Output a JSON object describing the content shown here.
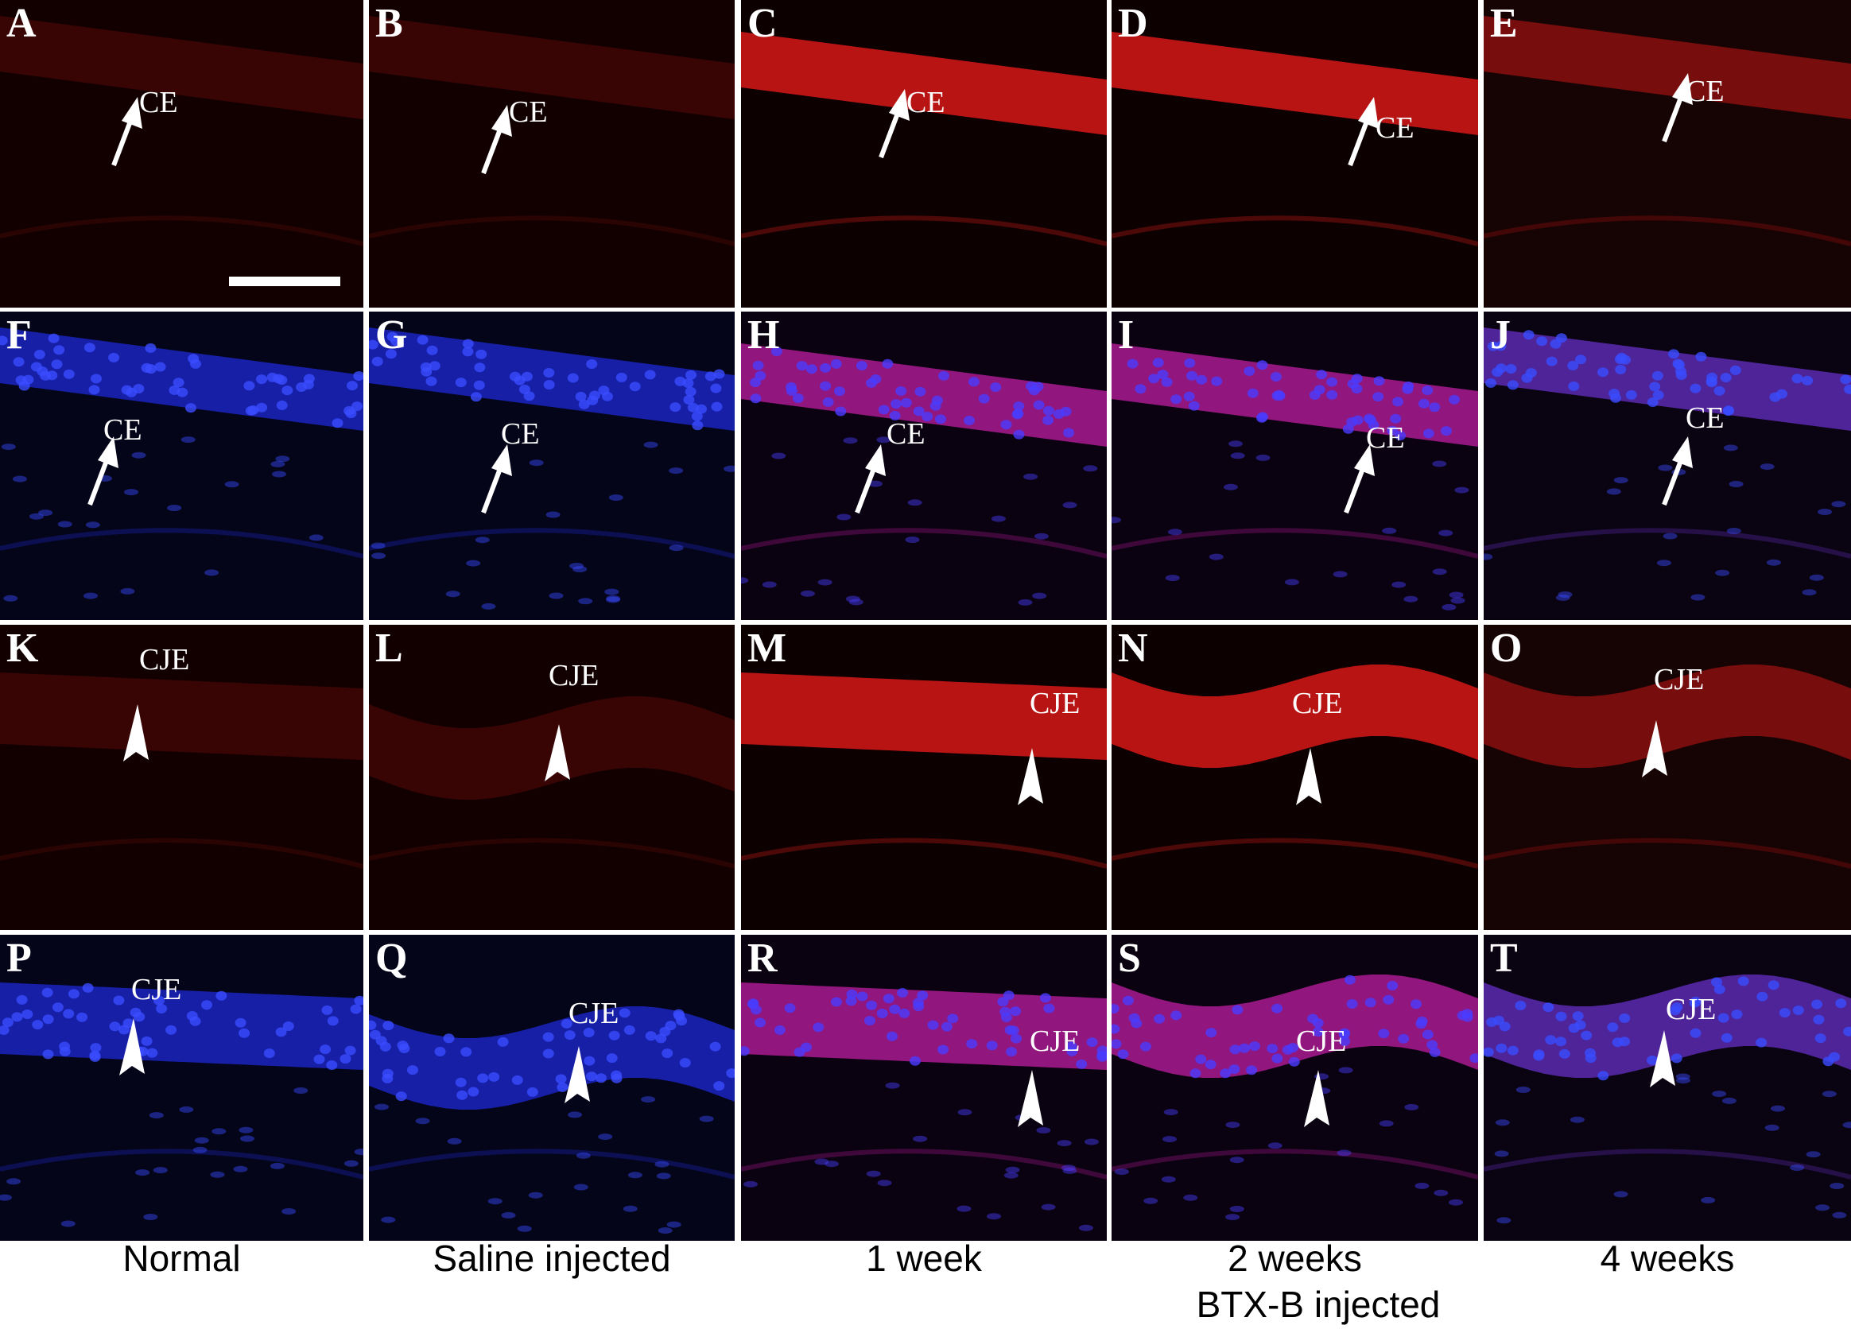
{
  "panels": [
    {
      "letter": "A",
      "marker": "arrow",
      "label": "CE",
      "tone": "red-faint"
    },
    {
      "letter": "B",
      "marker": "arrow",
      "label": "CE",
      "tone": "red-faint"
    },
    {
      "letter": "C",
      "marker": "arrow",
      "label": "CE",
      "tone": "red-strong"
    },
    {
      "letter": "D",
      "marker": "arrow",
      "label": "CE",
      "tone": "red-strong"
    },
    {
      "letter": "E",
      "marker": "arrow",
      "label": "CE",
      "tone": "red-medium"
    },
    {
      "letter": "F",
      "marker": "arrow",
      "label": "CE",
      "tone": "blue"
    },
    {
      "letter": "G",
      "marker": "arrow",
      "label": "CE",
      "tone": "blue"
    },
    {
      "letter": "H",
      "marker": "arrow",
      "label": "CE",
      "tone": "merge-strong"
    },
    {
      "letter": "I",
      "marker": "arrow",
      "label": "CE",
      "tone": "merge-strong"
    },
    {
      "letter": "J",
      "marker": "arrow",
      "label": "CE",
      "tone": "merge"
    },
    {
      "letter": "K",
      "marker": "arrowhead",
      "label": "CJE",
      "tone": "red-faint"
    },
    {
      "letter": "L",
      "marker": "arrowhead",
      "label": "CJE",
      "tone": "red-faint"
    },
    {
      "letter": "M",
      "marker": "arrowhead",
      "label": "CJE",
      "tone": "red-strong"
    },
    {
      "letter": "N",
      "marker": "arrowhead",
      "label": "CJE",
      "tone": "red-strong"
    },
    {
      "letter": "O",
      "marker": "arrowhead",
      "label": "CJE",
      "tone": "red-medium"
    },
    {
      "letter": "P",
      "marker": "arrowhead",
      "label": "CJE",
      "tone": "blue"
    },
    {
      "letter": "Q",
      "marker": "arrowhead",
      "label": "CJE",
      "tone": "blue"
    },
    {
      "letter": "R",
      "marker": "arrowhead",
      "label": "CJE",
      "tone": "merge-strong"
    },
    {
      "letter": "S",
      "marker": "arrowhead",
      "label": "CJE",
      "tone": "merge-strong"
    },
    {
      "letter": "T",
      "marker": "arrowhead",
      "label": "CJE",
      "tone": "merge"
    }
  ],
  "columns": [
    {
      "label": "Normal"
    },
    {
      "label": "Saline injected"
    },
    {
      "label": "1 week"
    },
    {
      "label": "2 weeks"
    },
    {
      "label": "4 weeks"
    }
  ],
  "group_label": "BTX-B injected",
  "colors": {
    "background": "#000000",
    "red_stain": "#c01818",
    "blue_nuclei": "#2233dd",
    "divider": "#ffffff"
  }
}
